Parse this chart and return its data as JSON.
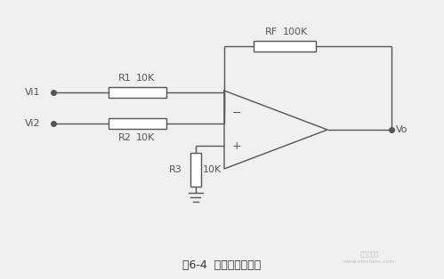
{
  "title": "图6-4  反相求和放大器",
  "bg_color": "#f5f5f5",
  "line_color": "#555555",
  "resistor_fill": "#ffffff",
  "text_color": "#333333",
  "labels": {
    "Vi1": "Vi1",
    "Vi2": "Vi2",
    "Vo": "Vo",
    "R1": "R1",
    "R1_val": "10K",
    "R2": "R2",
    "R2_val": "10K",
    "R3": "R3",
    "R3_val": "10K",
    "RF": "RF",
    "RF_val": "100K",
    "minus": "−",
    "plus": "+"
  },
  "figsize": [
    4.99,
    3.14
  ],
  "dpi": 100,
  "watermark1": "电子发烧友",
  "watermark2": "www.elecfans.com"
}
